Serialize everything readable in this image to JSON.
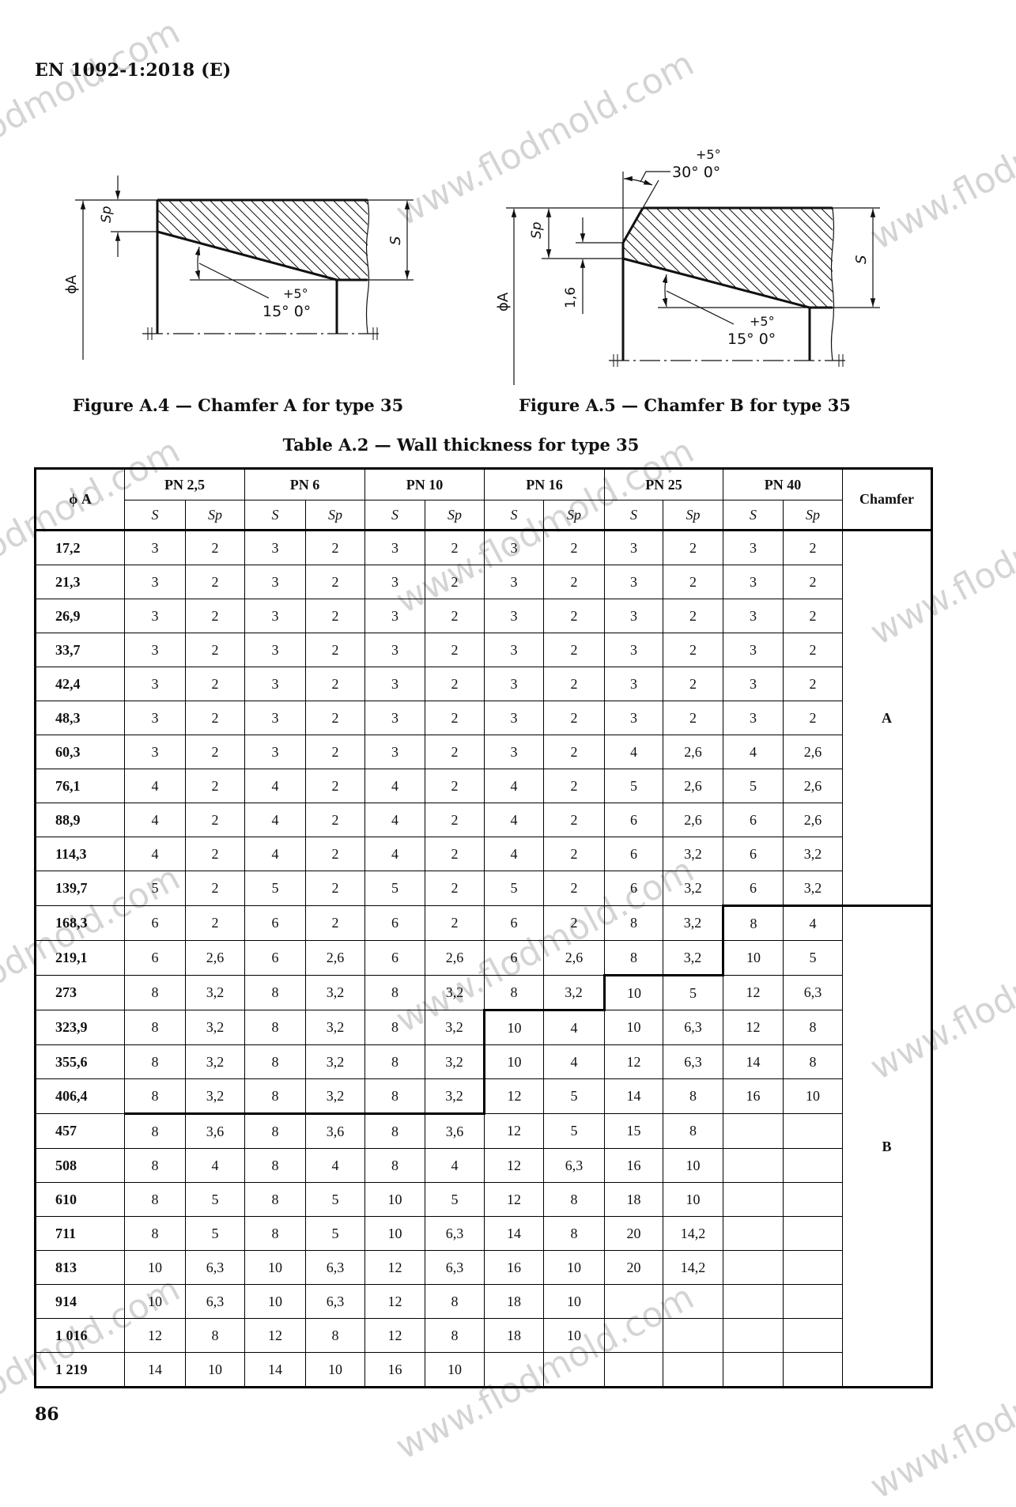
{
  "header": {
    "document_id": "EN 1092-1:2018 (E)"
  },
  "figure_a4": {
    "caption": "Figure A.4 — Chamfer A for type 35",
    "labels": {
      "diameter": "ϕA",
      "sp": "Sp",
      "s": "S",
      "angle_plus": "+5°",
      "angle_main": "15° 0°"
    }
  },
  "figure_a5": {
    "caption": "Figure A.5 — Chamfer B for type 35",
    "labels": {
      "diameter": "ϕA",
      "sp": "Sp",
      "s": "S",
      "dim_1_6": "1,6",
      "angle_plus": "+5°",
      "angle_main": "15° 0°",
      "angle30_plus": "+5°",
      "angle30_main": "30° 0°"
    }
  },
  "table": {
    "title": "Table A.2 — Wall thickness for type 35",
    "col_diameter": "ϕ A",
    "col_chamfer": "Chamfer",
    "sub_s": "S",
    "sub_sp": "Sp",
    "pn_groups": [
      "PN 2,5",
      "PN 6",
      "PN 10",
      "PN 16",
      "PN 25",
      "PN 40"
    ],
    "chamfer_b_starts_at": {
      "PN 2,5": "457",
      "PN 6": "457",
      "PN 10": "457",
      "PN 16": "323,9",
      "PN 25": "273",
      "PN 40": "168,3",
      "Chamfer": "168,3"
    },
    "chamfer_values": [
      "A",
      "B"
    ],
    "rows": [
      {
        "d": "17,2",
        "v": [
          "3",
          "2",
          "3",
          "2",
          "3",
          "2",
          "3",
          "2",
          "3",
          "2",
          "3",
          "2"
        ]
      },
      {
        "d": "21,3",
        "v": [
          "3",
          "2",
          "3",
          "2",
          "3",
          "2",
          "3",
          "2",
          "3",
          "2",
          "3",
          "2"
        ]
      },
      {
        "d": "26,9",
        "v": [
          "3",
          "2",
          "3",
          "2",
          "3",
          "2",
          "3",
          "2",
          "3",
          "2",
          "3",
          "2"
        ]
      },
      {
        "d": "33,7",
        "v": [
          "3",
          "2",
          "3",
          "2",
          "3",
          "2",
          "3",
          "2",
          "3",
          "2",
          "3",
          "2"
        ]
      },
      {
        "d": "42,4",
        "v": [
          "3",
          "2",
          "3",
          "2",
          "3",
          "2",
          "3",
          "2",
          "3",
          "2",
          "3",
          "2"
        ]
      },
      {
        "d": "48,3",
        "v": [
          "3",
          "2",
          "3",
          "2",
          "3",
          "2",
          "3",
          "2",
          "3",
          "2",
          "3",
          "2"
        ]
      },
      {
        "d": "60,3",
        "v": [
          "3",
          "2",
          "3",
          "2",
          "3",
          "2",
          "3",
          "2",
          "4",
          "2,6",
          "4",
          "2,6"
        ]
      },
      {
        "d": "76,1",
        "v": [
          "4",
          "2",
          "4",
          "2",
          "4",
          "2",
          "4",
          "2",
          "5",
          "2,6",
          "5",
          "2,6"
        ]
      },
      {
        "d": "88,9",
        "v": [
          "4",
          "2",
          "4",
          "2",
          "4",
          "2",
          "4",
          "2",
          "6",
          "2,6",
          "6",
          "2,6"
        ]
      },
      {
        "d": "114,3",
        "v": [
          "4",
          "2",
          "4",
          "2",
          "4",
          "2",
          "4",
          "2",
          "6",
          "3,2",
          "6",
          "3,2"
        ]
      },
      {
        "d": "139,7",
        "v": [
          "5",
          "2",
          "5",
          "2",
          "5",
          "2",
          "5",
          "2",
          "6",
          "3,2",
          "6",
          "3,2"
        ]
      },
      {
        "d": "168,3",
        "v": [
          "6",
          "2",
          "6",
          "2",
          "6",
          "2",
          "6",
          "2",
          "8",
          "3,2",
          "8",
          "4"
        ]
      },
      {
        "d": "219,1",
        "v": [
          "6",
          "2,6",
          "6",
          "2,6",
          "6",
          "2,6",
          "6",
          "2,6",
          "8",
          "3,2",
          "10",
          "5"
        ]
      },
      {
        "d": "273",
        "v": [
          "8",
          "3,2",
          "8",
          "3,2",
          "8",
          "3,2",
          "8",
          "3,2",
          "10",
          "5",
          "12",
          "6,3"
        ]
      },
      {
        "d": "323,9",
        "v": [
          "8",
          "3,2",
          "8",
          "3,2",
          "8",
          "3,2",
          "10",
          "4",
          "10",
          "6,3",
          "12",
          "8"
        ]
      },
      {
        "d": "355,6",
        "v": [
          "8",
          "3,2",
          "8",
          "3,2",
          "8",
          "3,2",
          "10",
          "4",
          "12",
          "6,3",
          "14",
          "8"
        ]
      },
      {
        "d": "406,4",
        "v": [
          "8",
          "3,2",
          "8",
          "3,2",
          "8",
          "3,2",
          "12",
          "5",
          "14",
          "8",
          "16",
          "10"
        ]
      },
      {
        "d": "457",
        "v": [
          "8",
          "3,6",
          "8",
          "3,6",
          "8",
          "3,6",
          "12",
          "5",
          "15",
          "8",
          "",
          ""
        ]
      },
      {
        "d": "508",
        "v": [
          "8",
          "4",
          "8",
          "4",
          "8",
          "4",
          "12",
          "6,3",
          "16",
          "10",
          "",
          ""
        ]
      },
      {
        "d": "610",
        "v": [
          "8",
          "5",
          "8",
          "5",
          "10",
          "5",
          "12",
          "8",
          "18",
          "10",
          "",
          ""
        ]
      },
      {
        "d": "711",
        "v": [
          "8",
          "5",
          "8",
          "5",
          "10",
          "6,3",
          "14",
          "8",
          "20",
          "14,2",
          "",
          ""
        ]
      },
      {
        "d": "813",
        "v": [
          "10",
          "6,3",
          "10",
          "6,3",
          "12",
          "6,3",
          "16",
          "10",
          "20",
          "14,2",
          "",
          ""
        ]
      },
      {
        "d": "914",
        "v": [
          "10",
          "6,3",
          "10",
          "6,3",
          "12",
          "8",
          "18",
          "10",
          "",
          "",
          "",
          ""
        ]
      },
      {
        "d": "1 016",
        "v": [
          "12",
          "8",
          "12",
          "8",
          "12",
          "8",
          "18",
          "10",
          "",
          "",
          "",
          ""
        ]
      },
      {
        "d": "1 219",
        "v": [
          "14",
          "10",
          "14",
          "10",
          "16",
          "10",
          "",
          "",
          "",
          "",
          "",
          ""
        ]
      }
    ]
  },
  "page_number": "86",
  "watermark": {
    "text": "www.flodmold.com"
  }
}
